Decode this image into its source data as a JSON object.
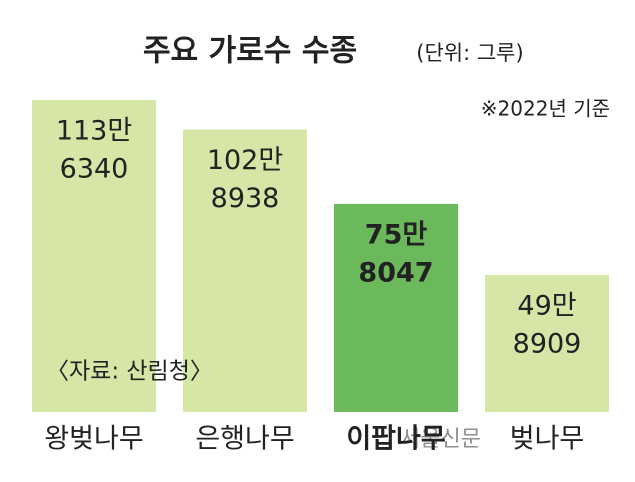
{
  "chart_data": {
    "type": "bar",
    "title": "주요 가로수 수종",
    "subtitle": "(단위: 그루)",
    "note": "※2022년 기준",
    "source": "〈자료: 산림청〉",
    "watermark": "서울신문",
    "categories": [
      "왕벚나무",
      "은행나무",
      "이팝나무",
      "벚나무"
    ],
    "values": [
      1136340,
      1028938,
      758047,
      498909
    ],
    "value_labels": [
      [
        "113만",
        "6340"
      ],
      [
        "102만",
        "8938"
      ],
      [
        "75만",
        "8047"
      ],
      [
        "49만",
        "8909"
      ]
    ],
    "colors": [
      "#d5e6a6",
      "#d5e6a6",
      "#6cb95c",
      "#d5e6a6"
    ],
    "highlight": 2,
    "ylim": [
      0,
      1200000
    ]
  }
}
